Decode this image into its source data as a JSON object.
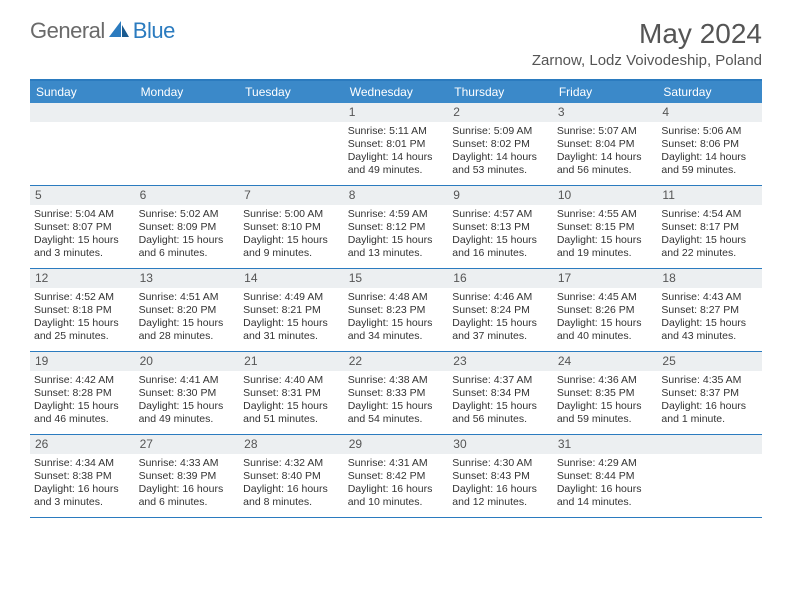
{
  "logo": {
    "general": "General",
    "blue": "Blue"
  },
  "title": "May 2024",
  "location": "Zarnow, Lodz Voivodeship, Poland",
  "dow": [
    "Sunday",
    "Monday",
    "Tuesday",
    "Wednesday",
    "Thursday",
    "Friday",
    "Saturday"
  ],
  "colors": {
    "header_bar": "#3b89c9",
    "accent": "#2b7bbf",
    "daynum_bg": "#eceff1",
    "text": "#333333",
    "title_text": "#555555"
  },
  "weeks": [
    [
      {
        "n": "",
        "sr": "",
        "ss": "",
        "dl": ""
      },
      {
        "n": "",
        "sr": "",
        "ss": "",
        "dl": ""
      },
      {
        "n": "",
        "sr": "",
        "ss": "",
        "dl": ""
      },
      {
        "n": "1",
        "sr": "Sunrise: 5:11 AM",
        "ss": "Sunset: 8:01 PM",
        "dl": "Daylight: 14 hours and 49 minutes."
      },
      {
        "n": "2",
        "sr": "Sunrise: 5:09 AM",
        "ss": "Sunset: 8:02 PM",
        "dl": "Daylight: 14 hours and 53 minutes."
      },
      {
        "n": "3",
        "sr": "Sunrise: 5:07 AM",
        "ss": "Sunset: 8:04 PM",
        "dl": "Daylight: 14 hours and 56 minutes."
      },
      {
        "n": "4",
        "sr": "Sunrise: 5:06 AM",
        "ss": "Sunset: 8:06 PM",
        "dl": "Daylight: 14 hours and 59 minutes."
      }
    ],
    [
      {
        "n": "5",
        "sr": "Sunrise: 5:04 AM",
        "ss": "Sunset: 8:07 PM",
        "dl": "Daylight: 15 hours and 3 minutes."
      },
      {
        "n": "6",
        "sr": "Sunrise: 5:02 AM",
        "ss": "Sunset: 8:09 PM",
        "dl": "Daylight: 15 hours and 6 minutes."
      },
      {
        "n": "7",
        "sr": "Sunrise: 5:00 AM",
        "ss": "Sunset: 8:10 PM",
        "dl": "Daylight: 15 hours and 9 minutes."
      },
      {
        "n": "8",
        "sr": "Sunrise: 4:59 AM",
        "ss": "Sunset: 8:12 PM",
        "dl": "Daylight: 15 hours and 13 minutes."
      },
      {
        "n": "9",
        "sr": "Sunrise: 4:57 AM",
        "ss": "Sunset: 8:13 PM",
        "dl": "Daylight: 15 hours and 16 minutes."
      },
      {
        "n": "10",
        "sr": "Sunrise: 4:55 AM",
        "ss": "Sunset: 8:15 PM",
        "dl": "Daylight: 15 hours and 19 minutes."
      },
      {
        "n": "11",
        "sr": "Sunrise: 4:54 AM",
        "ss": "Sunset: 8:17 PM",
        "dl": "Daylight: 15 hours and 22 minutes."
      }
    ],
    [
      {
        "n": "12",
        "sr": "Sunrise: 4:52 AM",
        "ss": "Sunset: 8:18 PM",
        "dl": "Daylight: 15 hours and 25 minutes."
      },
      {
        "n": "13",
        "sr": "Sunrise: 4:51 AM",
        "ss": "Sunset: 8:20 PM",
        "dl": "Daylight: 15 hours and 28 minutes."
      },
      {
        "n": "14",
        "sr": "Sunrise: 4:49 AM",
        "ss": "Sunset: 8:21 PM",
        "dl": "Daylight: 15 hours and 31 minutes."
      },
      {
        "n": "15",
        "sr": "Sunrise: 4:48 AM",
        "ss": "Sunset: 8:23 PM",
        "dl": "Daylight: 15 hours and 34 minutes."
      },
      {
        "n": "16",
        "sr": "Sunrise: 4:46 AM",
        "ss": "Sunset: 8:24 PM",
        "dl": "Daylight: 15 hours and 37 minutes."
      },
      {
        "n": "17",
        "sr": "Sunrise: 4:45 AM",
        "ss": "Sunset: 8:26 PM",
        "dl": "Daylight: 15 hours and 40 minutes."
      },
      {
        "n": "18",
        "sr": "Sunrise: 4:43 AM",
        "ss": "Sunset: 8:27 PM",
        "dl": "Daylight: 15 hours and 43 minutes."
      }
    ],
    [
      {
        "n": "19",
        "sr": "Sunrise: 4:42 AM",
        "ss": "Sunset: 8:28 PM",
        "dl": "Daylight: 15 hours and 46 minutes."
      },
      {
        "n": "20",
        "sr": "Sunrise: 4:41 AM",
        "ss": "Sunset: 8:30 PM",
        "dl": "Daylight: 15 hours and 49 minutes."
      },
      {
        "n": "21",
        "sr": "Sunrise: 4:40 AM",
        "ss": "Sunset: 8:31 PM",
        "dl": "Daylight: 15 hours and 51 minutes."
      },
      {
        "n": "22",
        "sr": "Sunrise: 4:38 AM",
        "ss": "Sunset: 8:33 PM",
        "dl": "Daylight: 15 hours and 54 minutes."
      },
      {
        "n": "23",
        "sr": "Sunrise: 4:37 AM",
        "ss": "Sunset: 8:34 PM",
        "dl": "Daylight: 15 hours and 56 minutes."
      },
      {
        "n": "24",
        "sr": "Sunrise: 4:36 AM",
        "ss": "Sunset: 8:35 PM",
        "dl": "Daylight: 15 hours and 59 minutes."
      },
      {
        "n": "25",
        "sr": "Sunrise: 4:35 AM",
        "ss": "Sunset: 8:37 PM",
        "dl": "Daylight: 16 hours and 1 minute."
      }
    ],
    [
      {
        "n": "26",
        "sr": "Sunrise: 4:34 AM",
        "ss": "Sunset: 8:38 PM",
        "dl": "Daylight: 16 hours and 3 minutes."
      },
      {
        "n": "27",
        "sr": "Sunrise: 4:33 AM",
        "ss": "Sunset: 8:39 PM",
        "dl": "Daylight: 16 hours and 6 minutes."
      },
      {
        "n": "28",
        "sr": "Sunrise: 4:32 AM",
        "ss": "Sunset: 8:40 PM",
        "dl": "Daylight: 16 hours and 8 minutes."
      },
      {
        "n": "29",
        "sr": "Sunrise: 4:31 AM",
        "ss": "Sunset: 8:42 PM",
        "dl": "Daylight: 16 hours and 10 minutes."
      },
      {
        "n": "30",
        "sr": "Sunrise: 4:30 AM",
        "ss": "Sunset: 8:43 PM",
        "dl": "Daylight: 16 hours and 12 minutes."
      },
      {
        "n": "31",
        "sr": "Sunrise: 4:29 AM",
        "ss": "Sunset: 8:44 PM",
        "dl": "Daylight: 16 hours and 14 minutes."
      },
      {
        "n": "",
        "sr": "",
        "ss": "",
        "dl": ""
      }
    ]
  ]
}
